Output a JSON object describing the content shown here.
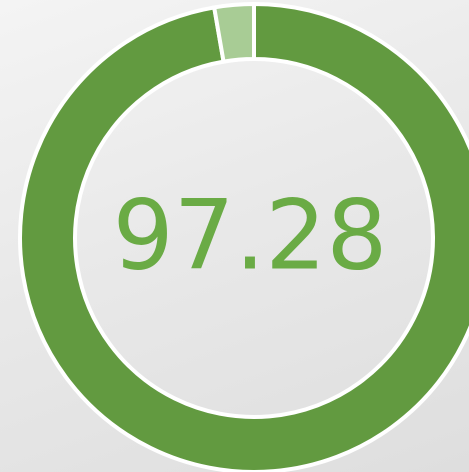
{
  "chart_data": {
    "type": "donut",
    "values": [
      97.28,
      2.72
    ],
    "colors": [
      "#629a40",
      "#a8cc95"
    ],
    "center_value_index": 0,
    "center_color": "#6aab45"
  }
}
